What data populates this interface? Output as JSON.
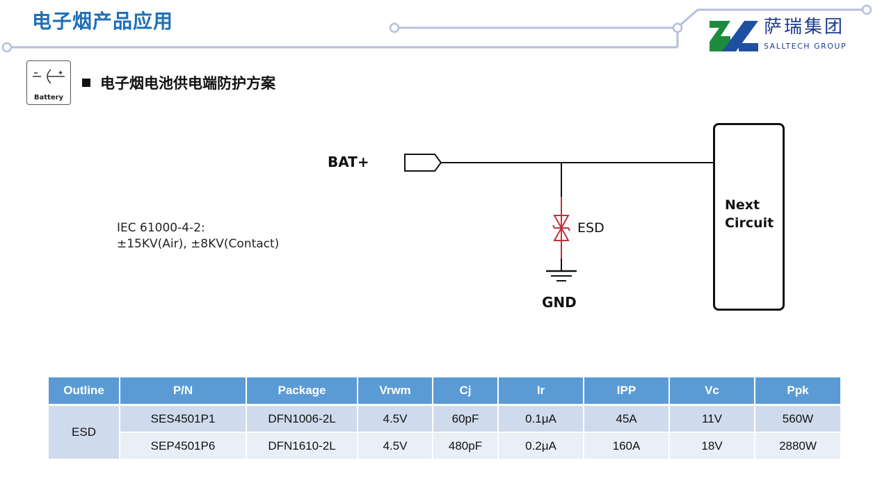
{
  "header": {
    "title": "电子烟产品应用"
  },
  "logo": {
    "name_cn": "萨瑞集团",
    "name_en": "SALLTECH GROUP",
    "colors": {
      "green": "#1e8a3c",
      "blue": "#1f4fa0"
    }
  },
  "section": {
    "icon": "battery-icon",
    "icon_label": "Battery",
    "title": "电子烟电池供电端防护方案"
  },
  "diagram": {
    "input_label": "BAT+",
    "component_label": "ESD",
    "ground_label": "GND",
    "load_label_line1": "Next",
    "load_label_line2": "Circuit",
    "esd_color": "#c0303a",
    "standard_line1": "IEC 61000-4-2:",
    "standard_line2": "±15KV(Air), ±8KV(Contact)"
  },
  "table": {
    "headers": [
      "Outline",
      "P/N",
      "Package",
      "Vrwm",
      "Cj",
      "Ir",
      "IPP",
      "Vc",
      "Ppk"
    ],
    "outline": "ESD",
    "rows": [
      [
        "SES4501P1",
        "DFN1006-2L",
        "4.5V",
        "60pF",
        "0.1μA",
        "45A",
        "11V",
        "560W"
      ],
      [
        "SEP4501P6",
        "DFN1610-2L",
        "4.5V",
        "480pF",
        "0.2μA",
        "160A",
        "18V",
        "2880W"
      ]
    ],
    "colors": {
      "header": "#5b9bd5",
      "row_dark": "#cfdaec",
      "row_light": "#e9eef7"
    }
  }
}
